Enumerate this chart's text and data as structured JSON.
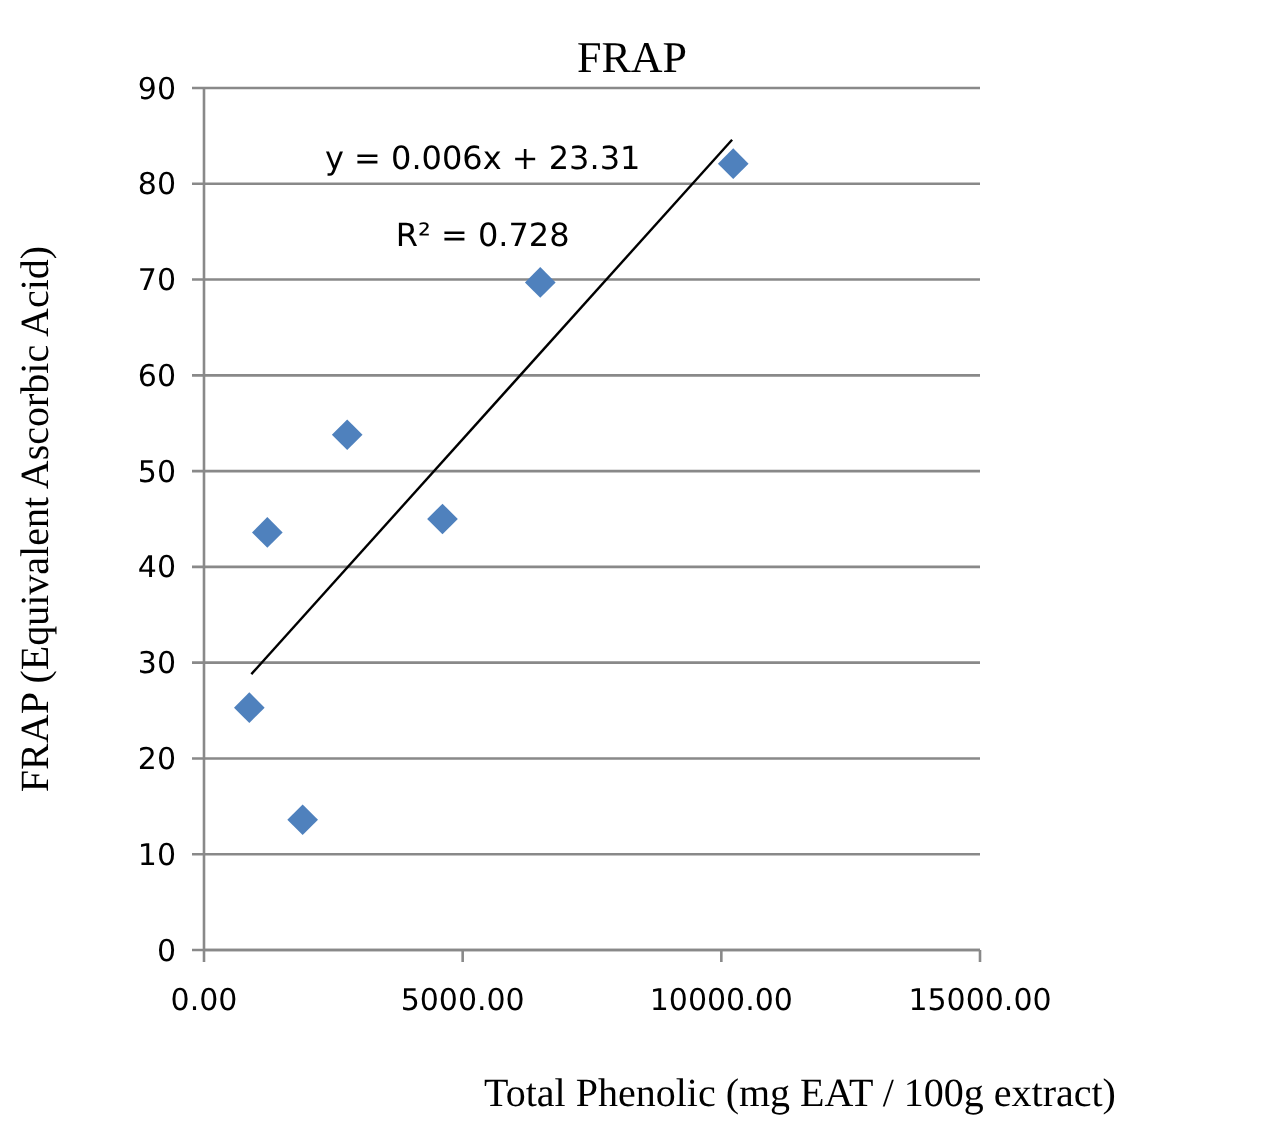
{
  "chart_data": {
    "type": "scatter",
    "title": "FRAP",
    "xlabel": "Total Phenolic (mg EAT / 100g extract)",
    "ylabel": "FRAP (Equivalent Ascorbic Acid)",
    "series": [
      {
        "color": "#4f81bd",
        "marker": "diamond",
        "x": [
          876,
          1907,
          1224,
          2768,
          4610,
          6500,
          10230
        ],
        "values": [
          25.3,
          13.6,
          43.6,
          53.8,
          45.0,
          69.7,
          82.1
        ]
      },
      {
        "type": "line",
        "color": "#000000",
        "marker": "none",
        "line_style": "solid",
        "x": [
          915,
          10208
        ],
        "values": [
          28.8,
          84.6
        ]
      }
    ],
    "annotations": [
      "y = 0.006x + 23.31",
      "R² = 0.728"
    ],
    "xlim": [
      0,
      15000
    ],
    "xticks": [
      {
        "value": 0,
        "label": "0.00"
      },
      {
        "value": 5000,
        "label": "5000.00"
      },
      {
        "value": 10000,
        "label": "10000.00"
      },
      {
        "value": 15000,
        "label": "15000.00"
      }
    ],
    "ylim": [
      0,
      90
    ],
    "yticks": [
      0,
      10,
      20,
      30,
      40,
      50,
      60,
      70,
      80,
      90
    ],
    "grid": "y"
  }
}
